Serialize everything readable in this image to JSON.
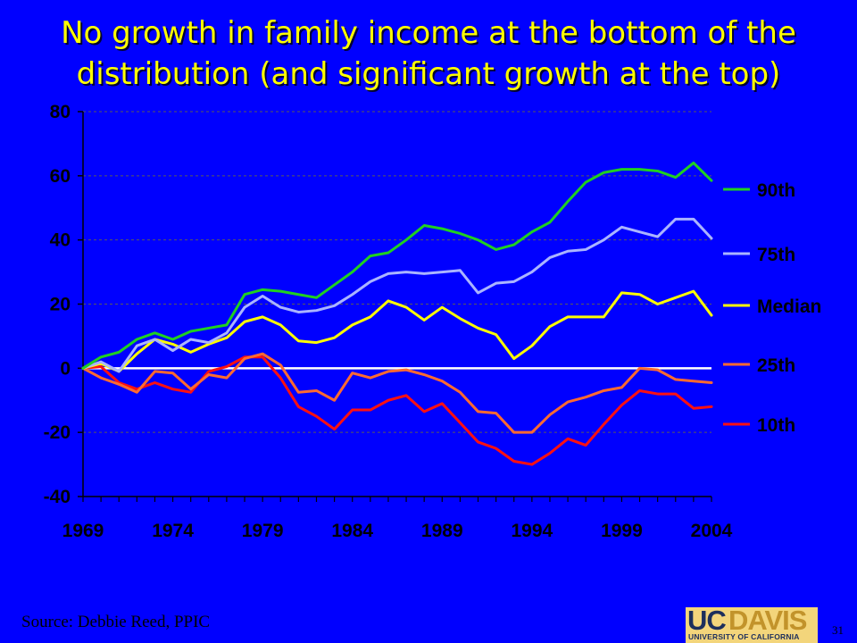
{
  "title": {
    "line1": "No growth in family income at the bottom of the",
    "line2": "distribution (and significant growth at the top)"
  },
  "source": "Source: Debbie Reed, PPIC",
  "slide_number": "31",
  "logo": {
    "uc": "UC",
    "davis": "DAVIS",
    "university": "UNIVERSITY OF CALIFORNIA"
  },
  "colors": {
    "background": "#0000ff",
    "title": "#ffff00",
    "axis_text": "#000000",
    "gridline": "#5a5a5a",
    "zero_line": "#ffffff"
  },
  "chart_data": {
    "type": "line",
    "title": "",
    "xlabel": "",
    "ylabel": "",
    "x": [
      1969,
      1970,
      1971,
      1972,
      1973,
      1974,
      1975,
      1976,
      1977,
      1978,
      1979,
      1980,
      1981,
      1982,
      1983,
      1984,
      1985,
      1986,
      1987,
      1988,
      1989,
      1990,
      1991,
      1992,
      1993,
      1994,
      1995,
      1996,
      1997,
      1998,
      1999,
      2000,
      2001,
      2002,
      2003,
      2004
    ],
    "xlim": [
      1969,
      2004
    ],
    "ylim": [
      -40,
      80
    ],
    "y_ticks": [
      -40,
      -20,
      0,
      20,
      40,
      60,
      80
    ],
    "y_tick_labels": [
      "-40",
      "-20",
      "0",
      "20",
      "40",
      "60",
      "80"
    ],
    "x_ticks": [
      1969,
      1974,
      1979,
      1984,
      1989,
      1994,
      1999,
      2004
    ],
    "x_tick_labels": [
      "1969",
      "1974",
      "1979",
      "1984",
      "1989",
      "1994",
      "1999",
      "2004"
    ],
    "grid": "horizontal dashed",
    "legend_position": "right",
    "series": [
      {
        "name": "90th",
        "color": "#20d020",
        "values": [
          0,
          3.5,
          5,
          9,
          11,
          9,
          11.5,
          12.5,
          13.5,
          23,
          24.5,
          24,
          23,
          22,
          26,
          30,
          35,
          36,
          40,
          44.5,
          43.5,
          42,
          40,
          37,
          38.5,
          42.5,
          45.5,
          52,
          58,
          61,
          62,
          62,
          61.5,
          59.5,
          64,
          58.5
        ]
      },
      {
        "name": "75th",
        "color": "#aab4ff",
        "values": [
          0,
          2,
          -1,
          7,
          9,
          5.5,
          9,
          8,
          11,
          19,
          22.5,
          19,
          17.5,
          18,
          19.5,
          23,
          27,
          29.5,
          30,
          29.5,
          30,
          30.5,
          23.5,
          26.5,
          27,
          30,
          34.5,
          36.5,
          37,
          40,
          44,
          42.5,
          41,
          46.5,
          46.5,
          40.5
        ]
      },
      {
        "name": "Median",
        "color": "#ffff00",
        "values": [
          0,
          1.5,
          -1,
          4.5,
          9,
          7.5,
          5,
          7.5,
          9.5,
          14.5,
          16,
          13.5,
          8.5,
          8,
          9.5,
          13.5,
          16,
          21,
          19,
          15,
          19,
          15.5,
          12.5,
          10.5,
          3,
          7,
          13,
          16,
          16,
          16,
          23.5,
          23,
          20,
          22,
          24,
          16.5
        ]
      },
      {
        "name": "25th",
        "color": "#ff6a30",
        "values": [
          0,
          -3,
          -5,
          -7.5,
          -1,
          -1.5,
          -6.5,
          -2,
          -3,
          3,
          4.5,
          1,
          -7.5,
          -7,
          -10,
          -1.5,
          -3,
          -1,
          -0.5,
          -2,
          -4,
          -7.5,
          -13.5,
          -14,
          -20,
          -20,
          -14.5,
          -10.5,
          -9,
          -7,
          -6,
          0,
          -0.5,
          -3.5,
          -4,
          -4.5
        ]
      },
      {
        "name": "10th",
        "color": "#ff1010",
        "values": [
          0,
          0.5,
          -4.5,
          -6.5,
          -4.5,
          -6.5,
          -7.5,
          -1,
          0.5,
          3.5,
          3.5,
          -3,
          -12,
          -15,
          -19,
          -13,
          -13,
          -10,
          -8.5,
          -13.5,
          -11,
          -17,
          -23,
          -25,
          -29,
          -30,
          -26.5,
          -22,
          -24,
          -17.5,
          -11.5,
          -7,
          -8,
          -8,
          -12.5,
          -12
        ]
      }
    ]
  }
}
